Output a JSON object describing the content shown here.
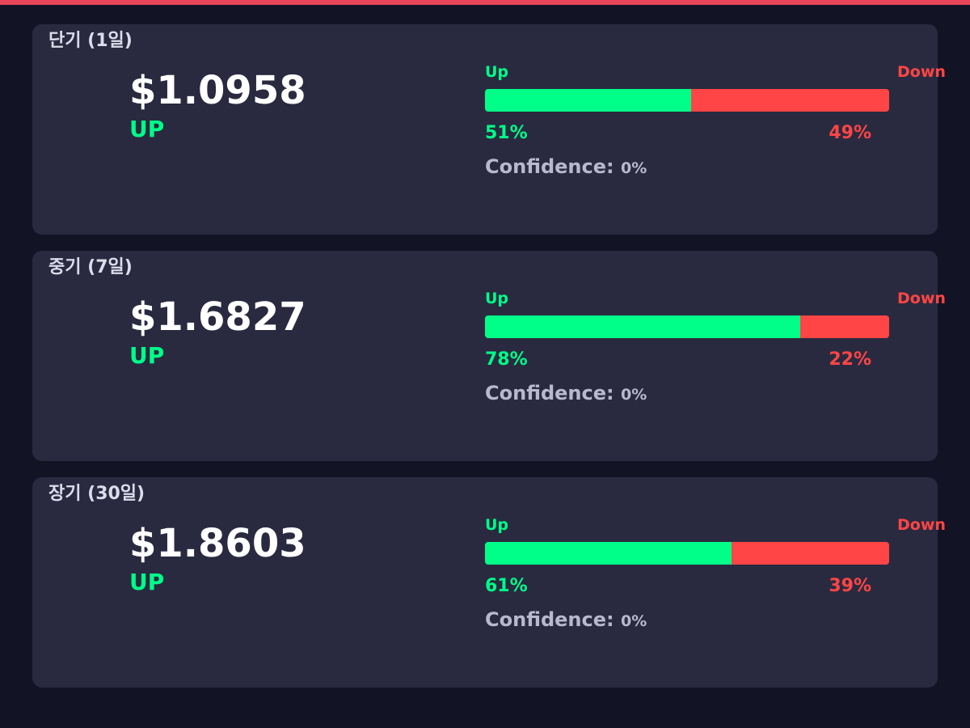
{
  "cards": [
    {
      "title": "단기 (1일)",
      "price": "$1.0958",
      "direction": "UP",
      "up_text": "Up",
      "down_text": "Down",
      "up": {
        "value": 51,
        "label": "51%"
      },
      "down": {
        "value": 49,
        "label": "49%"
      },
      "confidence_label": "Confidence:",
      "confidence": "0%"
    },
    {
      "title": "중기 (7일)",
      "price": "$1.6827",
      "direction": "UP",
      "up_text": "Up",
      "down_text": "Down",
      "up": {
        "value": 78,
        "label": "78%"
      },
      "down": {
        "value": 22,
        "label": "22%"
      },
      "confidence_label": "Confidence:",
      "confidence": "0%"
    },
    {
      "title": "장기 (30일)",
      "price": "$1.8603",
      "direction": "UP",
      "up_text": "Up",
      "down_text": "Down",
      "up": {
        "value": 61,
        "label": "61%"
      },
      "down": {
        "value": 39,
        "label": "39%"
      },
      "confidence_label": "Confidence:",
      "confidence": "0%"
    }
  ]
}
